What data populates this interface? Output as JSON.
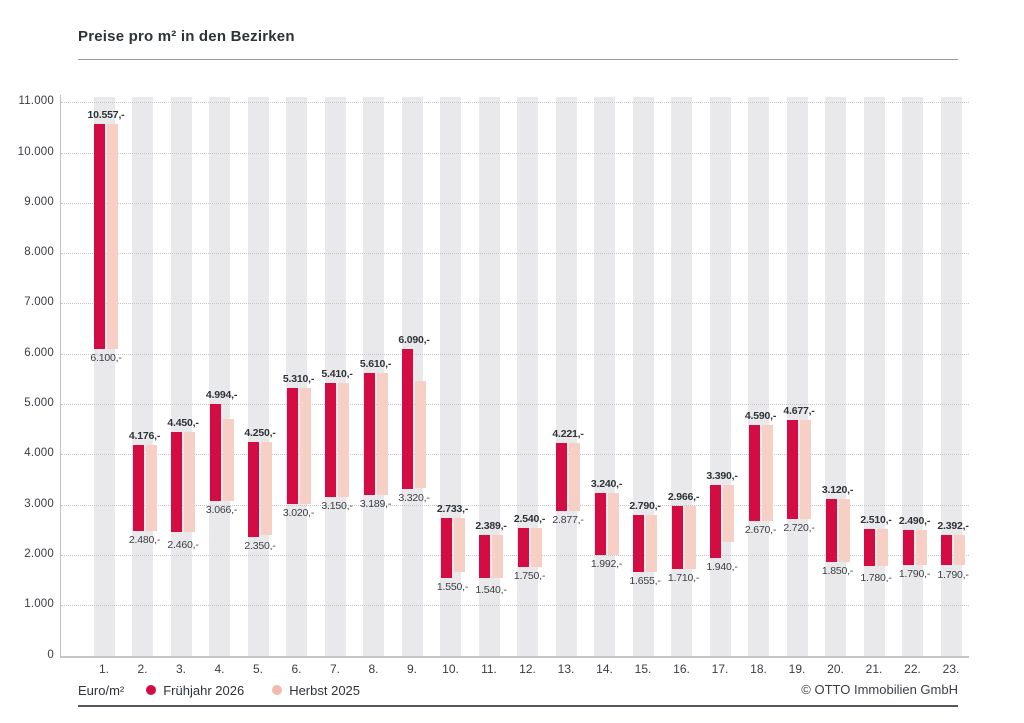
{
  "page": {
    "title": "Preise pro m² in den Bezirken",
    "copyright": "© OTTO Immobilien GmbH"
  },
  "legend": {
    "unit_label": "Euro/m²",
    "series": [
      {
        "label": "Frühjahr 2026",
        "color": "#d30c44"
      },
      {
        "label": "Herbst 2025",
        "color": "#f2baae"
      }
    ]
  },
  "colors": {
    "fruehjahr_bar": "#d30c44",
    "herbst_bar": "#f6cfc5",
    "band": "#e9e9eb",
    "grid": "#c6c6c8"
  },
  "chart_data": {
    "type": "bar",
    "subtype": "floating-range-columns",
    "title": "Preise pro m² in den Bezirken",
    "xlabel": "",
    "ylabel": "Euro/m²",
    "ylim": [
      0,
      11000
    ],
    "ytick_step": 1000,
    "ytick_labels": [
      "0",
      "1.000",
      "2.000",
      "3.000",
      "4.000",
      "5.000",
      "6.000",
      "7.000",
      "8.000",
      "9.000",
      "10.000",
      "11.000"
    ],
    "grid": "horizontal-dotted",
    "legend_position": "bottom-left",
    "categories": [
      "1.",
      "2.",
      "3.",
      "4.",
      "5.",
      "6.",
      "7.",
      "8.",
      "9.",
      "10.",
      "11.",
      "12.",
      "13.",
      "14.",
      "15.",
      "16.",
      "17.",
      "18.",
      "19.",
      "20.",
      "21.",
      "22.",
      "23."
    ],
    "series": [
      {
        "name": "Frühjahr 2026",
        "color": "#d30c44",
        "ranges": [
          [
            6100,
            10557
          ],
          [
            2480,
            4176
          ],
          [
            2460,
            4450
          ],
          [
            3066,
            4994
          ],
          [
            2350,
            4250
          ],
          [
            3020,
            5310
          ],
          [
            3150,
            5410
          ],
          [
            3189,
            5610
          ],
          [
            3320,
            6090
          ],
          [
            1550,
            2733
          ],
          [
            1540,
            2389
          ],
          [
            1750,
            2540
          ],
          [
            2877,
            4221
          ],
          [
            1992,
            3240
          ],
          [
            1655,
            2790
          ],
          [
            1710,
            2966
          ],
          [
            1940,
            3390
          ],
          [
            2670,
            4590
          ],
          [
            2720,
            4677
          ],
          [
            1850,
            3120
          ],
          [
            1780,
            2510
          ],
          [
            1790,
            2490
          ],
          [
            1790,
            2392
          ]
        ],
        "labels_max": [
          "10.557,-",
          "4.176,-",
          "4.450,-",
          "4.994,-",
          "4.250,-",
          "5.310,-",
          "5.410,-",
          "5.610,-",
          "6.090,-",
          "2.733,-",
          "2.389,-",
          "2.540,-",
          "4.221,-",
          "3.240,-",
          "2.790,-",
          "2.966,-",
          "3.390,-",
          "4.590,-",
          "4.677,-",
          "3.120,-",
          "2.510,-",
          "2.490,-",
          "2.392,-"
        ],
        "labels_min": [
          "6.100,-",
          "2.480,-",
          "2.460,-",
          "3.066,-",
          "2.350,-",
          "3.020,-",
          "3.150,-",
          "3.189,-",
          "3.320,-",
          "1.550,-",
          "1.540,-",
          "1.750,-",
          "2.877,-",
          "1.992,-",
          "1.655,-",
          "1.710,-",
          "1.940,-",
          "2.670,-",
          "2.720,-",
          "1.850,-",
          "1.780,-",
          "1.790,-",
          "1.790,-"
        ]
      },
      {
        "name": "Herbst 2025",
        "color": "#f6cfc5",
        "labels_shown": false,
        "values_estimated_from_pixels": true,
        "ranges": [
          [
            6100,
            10557
          ],
          [
            2480,
            4176
          ],
          [
            2460,
            4450
          ],
          [
            3066,
            4700
          ],
          [
            2400,
            4250
          ],
          [
            3020,
            5310
          ],
          [
            3150,
            5410
          ],
          [
            3189,
            5610
          ],
          [
            3320,
            5450
          ],
          [
            1650,
            2733
          ],
          [
            1540,
            2389
          ],
          [
            1750,
            2540
          ],
          [
            2877,
            4221
          ],
          [
            1992,
            3240
          ],
          [
            1655,
            2790
          ],
          [
            1710,
            2966
          ],
          [
            2250,
            3390
          ],
          [
            2670,
            4590
          ],
          [
            2720,
            4677
          ],
          [
            1850,
            3120
          ],
          [
            1780,
            2510
          ],
          [
            1790,
            2490
          ],
          [
            1790,
            2392
          ]
        ]
      }
    ],
    "min_label_dy": [
      0,
      0,
      4,
      0,
      0,
      0,
      0,
      0,
      0,
      0,
      3,
      0,
      0,
      0,
      0,
      0,
      0,
      0,
      0,
      0,
      3,
      0,
      1
    ]
  }
}
